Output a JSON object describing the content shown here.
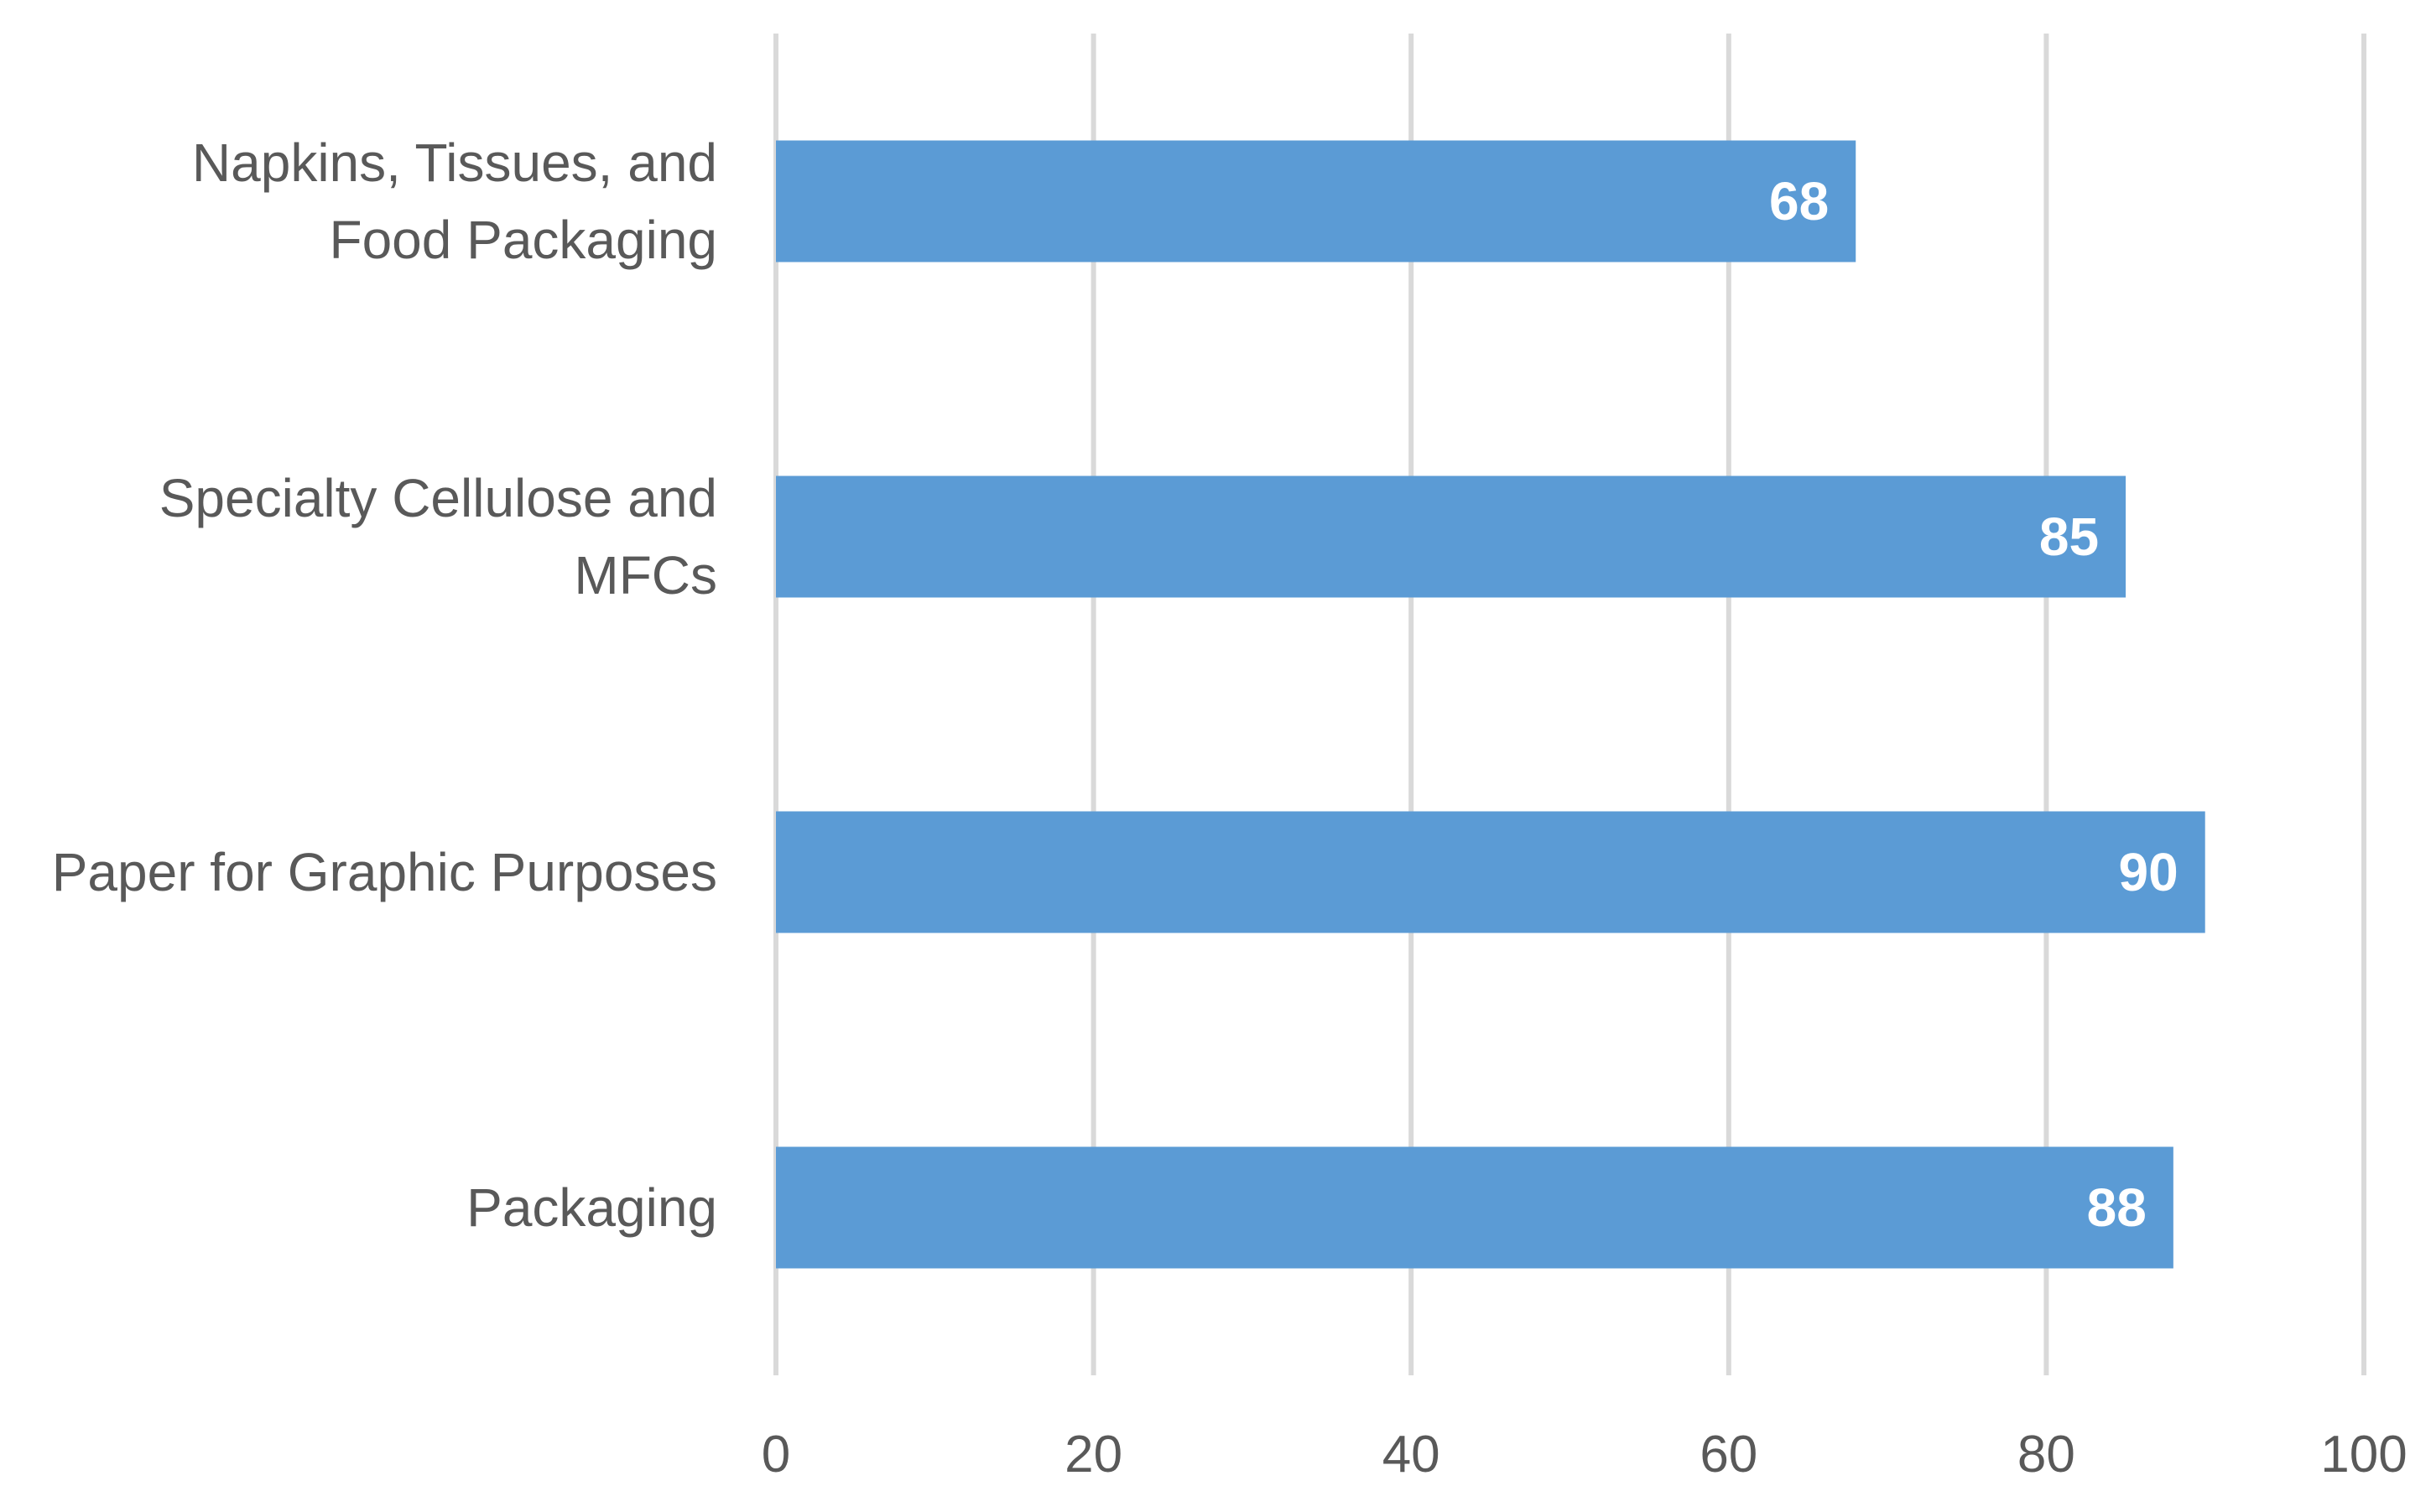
{
  "chart_data": {
    "type": "bar",
    "orientation": "horizontal",
    "categories": [
      [
        "Napkins, Tissues, and",
        "Food Packaging"
      ],
      [
        "Specialty Cellulose and",
        "MFCs"
      ],
      [
        "Paper for Graphic Purposes"
      ],
      [
        "Packaging"
      ]
    ],
    "values": [
      68,
      85,
      90,
      88
    ],
    "data_labels": [
      "68",
      "85",
      "90",
      "88"
    ],
    "xlim": [
      0,
      100
    ],
    "x_ticks": [
      0,
      20,
      40,
      60,
      80,
      100
    ],
    "x_tick_labels": [
      "0",
      "20",
      "40",
      "60",
      "80",
      "100"
    ],
    "title": "",
    "xlabel": "",
    "ylabel": "",
    "grid": "vertical",
    "legend": "none",
    "bar_color": "#5b9bd5",
    "gridline_color": "#d9d9d9",
    "label_color": "#595959",
    "data_label_color": "#ffffff"
  }
}
